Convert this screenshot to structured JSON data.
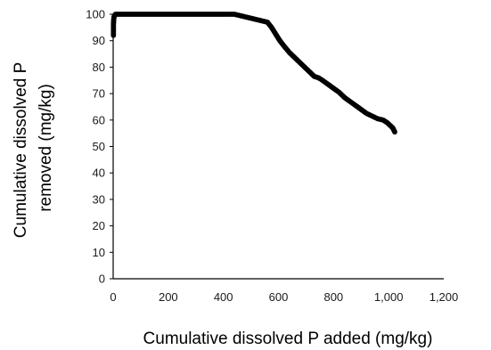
{
  "chart_data": {
    "type": "scatter",
    "xlabel": "Cumulative dissolved P added (mg/kg)",
    "ylabel_lines": [
      "Cumulative dissolved P",
      "removed (mg/kg)"
    ],
    "xlim": [
      0,
      1200
    ],
    "ylim": [
      0,
      100
    ],
    "xticks": [
      0,
      200,
      400,
      600,
      800,
      1000,
      1200
    ],
    "xtick_labels": [
      "0",
      "200",
      "400",
      "600",
      "800",
      "1,000",
      "1,200"
    ],
    "yticks": [
      0,
      10,
      20,
      30,
      40,
      50,
      60,
      70,
      80,
      90,
      100
    ],
    "ytick_labels": [
      "0",
      "10",
      "20",
      "30",
      "40",
      "50",
      "60",
      "70",
      "80",
      "90",
      "100"
    ],
    "grid": false,
    "legend": "none",
    "marker_color": "#000000",
    "axis_color": "#000000",
    "series": [
      {
        "values_xy": [
          [
            1,
            92
          ],
          [
            1,
            96
          ],
          [
            2,
            98
          ],
          [
            3,
            99
          ],
          [
            5,
            99.5
          ],
          [
            8,
            100
          ],
          [
            50,
            100
          ],
          [
            100,
            100
          ],
          [
            150,
            100
          ],
          [
            200,
            100
          ],
          [
            250,
            100
          ],
          [
            300,
            100
          ],
          [
            350,
            100
          ],
          [
            400,
            100
          ],
          [
            440,
            100
          ],
          [
            460,
            99.5
          ],
          [
            480,
            99
          ],
          [
            500,
            98.5
          ],
          [
            520,
            98
          ],
          [
            540,
            97.5
          ],
          [
            560,
            97
          ],
          [
            575,
            95
          ],
          [
            590,
            92.5
          ],
          [
            605,
            90
          ],
          [
            620,
            88
          ],
          [
            640,
            85.5
          ],
          [
            660,
            83.5
          ],
          [
            680,
            81.5
          ],
          [
            700,
            79.5
          ],
          [
            720,
            77.5
          ],
          [
            730,
            76.5
          ],
          [
            745,
            76
          ],
          [
            760,
            75
          ],
          [
            780,
            73.5
          ],
          [
            800,
            72
          ],
          [
            820,
            70.5
          ],
          [
            840,
            68.5
          ],
          [
            860,
            67
          ],
          [
            880,
            65.5
          ],
          [
            900,
            64
          ],
          [
            920,
            62.5
          ],
          [
            940,
            61.5
          ],
          [
            960,
            60.5
          ],
          [
            980,
            60
          ],
          [
            995,
            59
          ],
          [
            1005,
            58
          ],
          [
            1015,
            57
          ],
          [
            1022,
            55.5
          ]
        ]
      }
    ]
  }
}
